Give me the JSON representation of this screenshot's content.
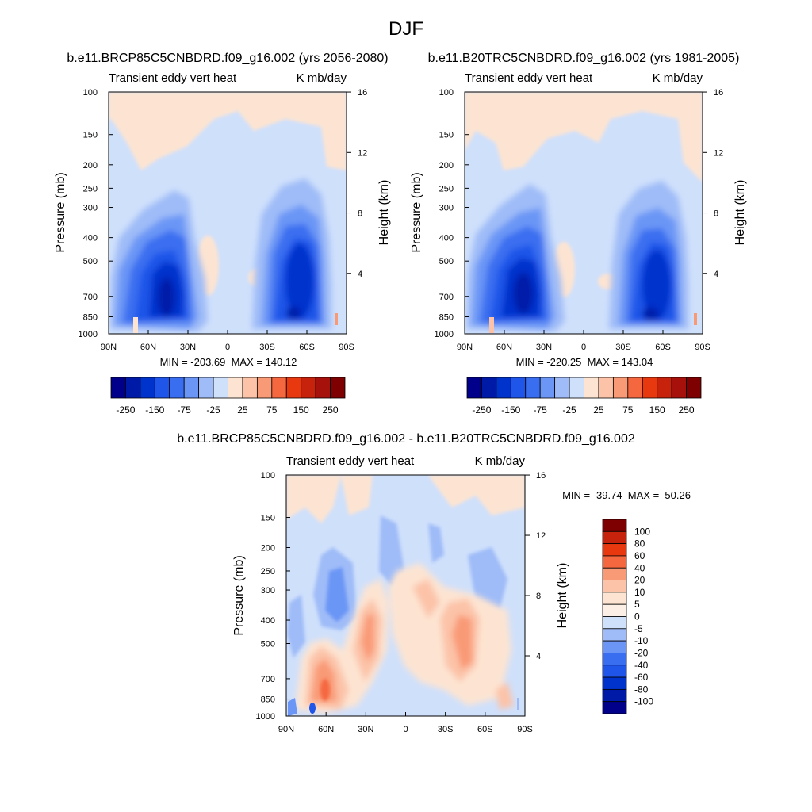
{
  "figure": {
    "title": "DJF"
  },
  "colors": {
    "panel_scale": [
      "#00008b",
      "#001aa8",
      "#0033cc",
      "#1f55e8",
      "#3a6ef0",
      "#6b96f6",
      "#9fbcf8",
      "#cfe0fb",
      "#fde4d2",
      "#fcc3a8",
      "#f99a76",
      "#f5673f",
      "#e8380f",
      "#c7220b",
      "#a6120b",
      "#7e0000"
    ],
    "diff_scale": [
      "#00008b",
      "#001aa8",
      "#0033cc",
      "#1f55e8",
      "#3a6ef0",
      "#6b96f6",
      "#9fbcf8",
      "#cfe0fb",
      "#fbefe6",
      "#fde4d2",
      "#fcc3a8",
      "#f99a76",
      "#f5673f",
      "#e8380f",
      "#c7220b",
      "#7e0000"
    ]
  },
  "chart_data": [
    {
      "id": "future",
      "type": "heatmap",
      "title": "b.e11.BRCP85C5CNBDRD.f09_g16.002 (yrs 2056-2080)",
      "left_label": "Transient eddy vert heat",
      "right_label": "K mb/day",
      "ylabel": "Pressure (mb)",
      "ylabel_right": "Height (km)",
      "x_ticks": [
        "90N",
        "60N",
        "30N",
        "0",
        "30S",
        "60S",
        "90S"
      ],
      "y_ticks": [
        "100",
        "150",
        "200",
        "250",
        "300",
        "400",
        "500",
        "700",
        "850",
        "1000"
      ],
      "y_right_ticks": [
        "16",
        "12",
        "8",
        "4"
      ],
      "xlim": [
        90,
        -90
      ],
      "ylim": [
        1000,
        100
      ],
      "stats": "MIN = -203.69  MAX = 140.12",
      "colorbar_labels": [
        "-250",
        "-150",
        "-75",
        "-25",
        "25",
        "75",
        "150",
        "250"
      ],
      "features": [
        {
          "lat": -40,
          "p": 600,
          "value": -203.69
        },
        {
          "lat": 60,
          "p": 700,
          "value": -160
        },
        {
          "lat": -60,
          "p": 700,
          "value": -180
        },
        {
          "lat": 20,
          "p": 500,
          "value": 15
        },
        {
          "lat": 0,
          "p": 130,
          "value": 10
        }
      ]
    },
    {
      "id": "historical",
      "type": "heatmap",
      "title": "b.e11.B20TRC5CNBDRD.f09_g16.002 (yrs 1981-2005)",
      "left_label": "Transient eddy vert heat",
      "right_label": "K mb/day",
      "ylabel": "Pressure (mb)",
      "ylabel_right": "Height (km)",
      "x_ticks": [
        "90N",
        "60N",
        "30N",
        "0",
        "30S",
        "60S",
        "90S"
      ],
      "y_ticks": [
        "100",
        "150",
        "200",
        "250",
        "300",
        "400",
        "500",
        "700",
        "850",
        "1000"
      ],
      "y_right_ticks": [
        "16",
        "12",
        "8",
        "4"
      ],
      "xlim": [
        90,
        -90
      ],
      "ylim": [
        1000,
        100
      ],
      "stats": "MIN = -220.25  MAX = 143.04",
      "colorbar_labels": [
        "-250",
        "-150",
        "-75",
        "-25",
        "25",
        "75",
        "150",
        "250"
      ],
      "features": [
        {
          "lat": 50,
          "p": 600,
          "value": -220.25
        },
        {
          "lat": -55,
          "p": 750,
          "value": -190
        },
        {
          "lat": 15,
          "p": 500,
          "value": 15
        },
        {
          "lat": 0,
          "p": 130,
          "value": 10
        }
      ]
    },
    {
      "id": "difference",
      "type": "heatmap",
      "title": "b.e11.BRCP85C5CNBDRD.f09_g16.002 - b.e11.B20TRC5CNBDRD.f09_g16.002",
      "left_label": "Transient eddy vert heat",
      "right_label": "K mb/day",
      "ylabel": "Pressure (mb)",
      "ylabel_right": "Height (km)",
      "x_ticks": [
        "90N",
        "60N",
        "30N",
        "0",
        "30S",
        "60S",
        "90S"
      ],
      "y_ticks": [
        "100",
        "150",
        "200",
        "250",
        "300",
        "400",
        "500",
        "700",
        "850",
        "1000"
      ],
      "y_right_ticks": [
        "16",
        "12",
        "8",
        "4"
      ],
      "xlim": [
        90,
        -90
      ],
      "ylim": [
        1000,
        100
      ],
      "stats": "MIN = -39.74  MAX =  50.26",
      "colorbar_labels": [
        "100",
        "80",
        "60",
        "40",
        "20",
        "10",
        "5",
        "0",
        "-5",
        "-10",
        "-20",
        "-40",
        "-60",
        "-80",
        "-100"
      ],
      "features": [
        {
          "lat": 65,
          "p": 800,
          "value": 50.26
        },
        {
          "lat": 30,
          "p": 500,
          "value": 30
        },
        {
          "lat": -40,
          "p": 450,
          "value": 30
        },
        {
          "lat": 50,
          "p": 350,
          "value": -25
        },
        {
          "lat": 80,
          "p": 950,
          "value": -39.74
        }
      ]
    }
  ]
}
